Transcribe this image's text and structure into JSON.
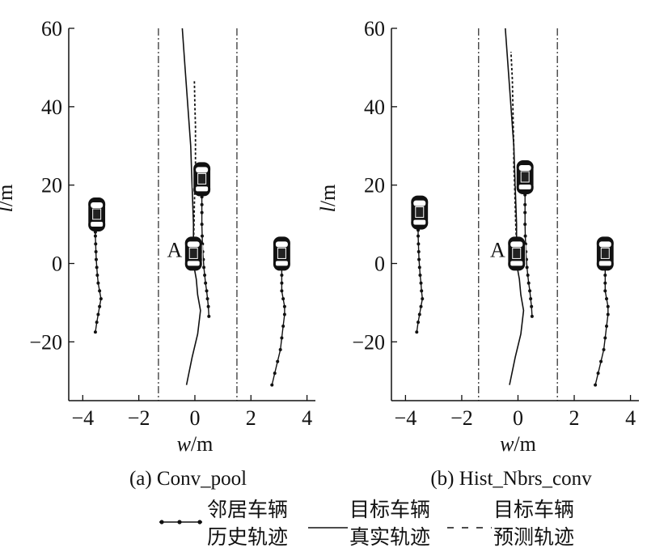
{
  "chart_data": [
    {
      "type": "line",
      "caption": "(a) Conv_pool",
      "xlabel_var": "w",
      "xlabel_unit": "/m",
      "ylabel_var": "l",
      "ylabel_unit": "/m",
      "xlim": [
        -4.5,
        4.3
      ],
      "ylim": [
        -35,
        60
      ],
      "xticks": [
        -4,
        -2,
        0,
        2,
        4
      ],
      "yticks": [
        -20,
        0,
        20,
        40,
        60
      ],
      "xtick_labels": [
        "−4",
        "−2",
        "0",
        "2",
        "4"
      ],
      "ytick_labels": [
        "−20",
        "0",
        "20",
        "40",
        "60"
      ],
      "lane_lines_x": [
        -1.3,
        1.5
      ],
      "target_label": "A",
      "cars": [
        {
          "role": "neighbor",
          "x": -3.5,
          "y": 12.5
        },
        {
          "role": "target",
          "x": -0.05,
          "y": 2.5
        },
        {
          "role": "neighbor",
          "x": 0.25,
          "y": 21.5
        },
        {
          "role": "neighbor",
          "x": 3.1,
          "y": 2.5
        }
      ],
      "series": [
        {
          "style": "neighbor-history",
          "points": [
            [
              -3.55,
              -17.5
            ],
            [
              -3.5,
              -15
            ],
            [
              -3.45,
              -13
            ],
            [
              -3.4,
              -11
            ],
            [
              -3.35,
              -9
            ],
            [
              -3.4,
              -7
            ],
            [
              -3.45,
              -5
            ],
            [
              -3.48,
              -3
            ],
            [
              -3.5,
              -1
            ],
            [
              -3.52,
              1
            ],
            [
              -3.53,
              3
            ],
            [
              -3.54,
              5
            ],
            [
              -3.55,
              7
            ],
            [
              -3.55,
              8
            ]
          ]
        },
        {
          "style": "neighbor-history",
          "points": [
            [
              0.5,
              -13.5
            ],
            [
              0.48,
              -11
            ],
            [
              0.45,
              -9
            ],
            [
              0.42,
              -7
            ],
            [
              0.38,
              -5
            ],
            [
              0.35,
              -3
            ],
            [
              0.32,
              -1
            ],
            [
              0.3,
              1
            ],
            [
              0.28,
              3
            ],
            [
              0.27,
              5
            ],
            [
              0.26,
              7
            ],
            [
              0.25,
              10
            ],
            [
              0.25,
              13
            ],
            [
              0.25,
              15
            ],
            [
              0.25,
              17
            ]
          ]
        },
        {
          "style": "neighbor-history",
          "points": [
            [
              2.75,
              -31
            ],
            [
              2.85,
              -28
            ],
            [
              2.95,
              -25
            ],
            [
              3.05,
              -22
            ],
            [
              3.1,
              -19
            ],
            [
              3.15,
              -16
            ],
            [
              3.2,
              -13
            ],
            [
              3.2,
              -11
            ],
            [
              3.15,
              -9
            ],
            [
              3.1,
              -7
            ],
            [
              3.1,
              -5
            ],
            [
              3.1,
              -3
            ],
            [
              3.1,
              -1
            ]
          ]
        },
        {
          "style": "target-true",
          "points": [
            [
              -0.3,
              -31
            ],
            [
              -0.1,
              -24
            ],
            [
              0.1,
              -18
            ],
            [
              0.2,
              -12
            ],
            [
              0.1,
              -8
            ],
            [
              0.05,
              -4
            ],
            [
              -0.05,
              0
            ],
            [
              -0.05,
              5
            ],
            [
              -0.05,
              10
            ],
            [
              -0.1,
              20
            ],
            [
              -0.15,
              30
            ],
            [
              -0.25,
              40
            ],
            [
              -0.35,
              50
            ],
            [
              -0.45,
              60
            ]
          ]
        },
        {
          "style": "target-predicted",
          "points": [
            [
              -0.05,
              5
            ],
            [
              -0.03,
              10
            ],
            [
              -0.02,
              15
            ],
            [
              0,
              20
            ],
            [
              0.02,
              25
            ],
            [
              0.02,
              30
            ],
            [
              0.02,
              35
            ],
            [
              0,
              40
            ],
            [
              -0.02,
              47
            ]
          ]
        }
      ]
    },
    {
      "type": "line",
      "caption": "(b) Hist_Nbrs_conv",
      "xlabel_var": "w",
      "xlabel_unit": "/m",
      "ylabel_var": "l",
      "ylabel_unit": "/m",
      "xlim": [
        -4.5,
        4.3
      ],
      "ylim": [
        -35,
        60
      ],
      "xticks": [
        -4,
        -2,
        0,
        2,
        4
      ],
      "yticks": [
        -20,
        0,
        20,
        40,
        60
      ],
      "xtick_labels": [
        "−4",
        "−2",
        "0",
        "2",
        "4"
      ],
      "ytick_labels": [
        "−20",
        "0",
        "20",
        "40",
        "60"
      ],
      "lane_lines_x": [
        -1.4,
        1.4
      ],
      "target_label": "A",
      "cars": [
        {
          "role": "neighbor",
          "x": -3.5,
          "y": 13
        },
        {
          "role": "target",
          "x": -0.05,
          "y": 2.5
        },
        {
          "role": "neighbor",
          "x": 0.25,
          "y": 22
        },
        {
          "role": "neighbor",
          "x": 3.1,
          "y": 2.5
        }
      ],
      "series": [
        {
          "style": "neighbor-history",
          "points": [
            [
              -3.6,
              -17.5
            ],
            [
              -3.55,
              -15
            ],
            [
              -3.5,
              -13
            ],
            [
              -3.45,
              -11
            ],
            [
              -3.4,
              -9
            ],
            [
              -3.43,
              -7
            ],
            [
              -3.45,
              -5
            ],
            [
              -3.48,
              -3
            ],
            [
              -3.5,
              -1
            ],
            [
              -3.52,
              1
            ],
            [
              -3.53,
              3
            ],
            [
              -3.54,
              5
            ],
            [
              -3.55,
              7
            ],
            [
              -3.55,
              8.5
            ]
          ]
        },
        {
          "style": "neighbor-history",
          "points": [
            [
              0.5,
              -13.5
            ],
            [
              0.48,
              -11
            ],
            [
              0.45,
              -9
            ],
            [
              0.42,
              -7
            ],
            [
              0.38,
              -5
            ],
            [
              0.35,
              -3
            ],
            [
              0.32,
              -1
            ],
            [
              0.3,
              1
            ],
            [
              0.28,
              3
            ],
            [
              0.27,
              5
            ],
            [
              0.26,
              7
            ],
            [
              0.25,
              10
            ],
            [
              0.25,
              13
            ],
            [
              0.25,
              15
            ],
            [
              0.25,
              17.5
            ]
          ]
        },
        {
          "style": "neighbor-history",
          "points": [
            [
              2.75,
              -31
            ],
            [
              2.85,
              -28
            ],
            [
              2.95,
              -25
            ],
            [
              3.05,
              -22
            ],
            [
              3.1,
              -19
            ],
            [
              3.15,
              -16
            ],
            [
              3.2,
              -13
            ],
            [
              3.2,
              -11
            ],
            [
              3.15,
              -9
            ],
            [
              3.1,
              -7
            ],
            [
              3.1,
              -5
            ],
            [
              3.1,
              -3
            ],
            [
              3.1,
              -1
            ]
          ]
        },
        {
          "style": "target-true",
          "points": [
            [
              -0.3,
              -31
            ],
            [
              -0.1,
              -24
            ],
            [
              0.1,
              -18
            ],
            [
              0.2,
              -12
            ],
            [
              0.1,
              -8
            ],
            [
              0.05,
              -4
            ],
            [
              -0.05,
              0
            ],
            [
              -0.05,
              5
            ],
            [
              -0.05,
              10
            ],
            [
              -0.1,
              20
            ],
            [
              -0.15,
              30
            ],
            [
              -0.25,
              40
            ],
            [
              -0.35,
              50
            ],
            [
              -0.45,
              60
            ]
          ]
        },
        {
          "style": "target-predicted",
          "points": [
            [
              -0.05,
              5
            ],
            [
              -0.08,
              10
            ],
            [
              -0.1,
              15
            ],
            [
              -0.12,
              20
            ],
            [
              -0.15,
              25
            ],
            [
              -0.15,
              30
            ],
            [
              -0.17,
              35
            ],
            [
              -0.18,
              40
            ],
            [
              -0.2,
              47
            ],
            [
              -0.25,
              54
            ]
          ]
        }
      ]
    }
  ],
  "legend": {
    "neighbor_history": [
      "邻居车辆",
      "历史轨迹"
    ],
    "target_true": [
      "目标车辆",
      "真实轨迹"
    ],
    "target_predicted": [
      "目标车辆",
      "预测轨迹"
    ]
  }
}
